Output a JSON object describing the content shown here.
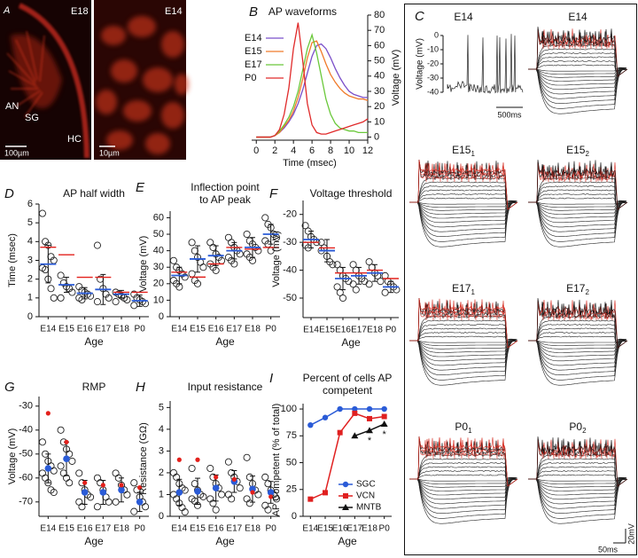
{
  "images": {
    "panel": "A",
    "left": {
      "label": "E18",
      "regions": [
        "AN",
        "SG",
        "HC"
      ],
      "scale": "100µm"
    },
    "right": {
      "label": "E14",
      "scale": "10µm"
    }
  },
  "chart_data": [
    {
      "panel": "B",
      "type": "line",
      "title": "AP waveforms",
      "x_label": "Time (msec)",
      "y_label": "Voltage (mV)",
      "y_axis_side": "right",
      "legend": "left",
      "x": [
        0,
        0.5,
        1,
        1.5,
        2,
        2.5,
        3,
        3.5,
        4,
        4.5,
        5,
        5.5,
        6,
        6.5,
        7,
        7.5,
        8,
        8.5,
        9,
        9.5,
        10,
        10.5,
        11,
        11.5,
        12
      ],
      "series": [
        {
          "name": "E14",
          "color": "#7b4fc9",
          "values": [
            0,
            0,
            0,
            0,
            1,
            3,
            6,
            10,
            15,
            22,
            31,
            42,
            53,
            60,
            61,
            58,
            52,
            45,
            39,
            34,
            30,
            28,
            27,
            26,
            26
          ]
        },
        {
          "name": "E15",
          "color": "#f07a2a",
          "values": [
            0,
            0,
            0,
            0,
            1,
            3,
            7,
            11,
            17,
            26,
            38,
            52,
            62,
            63,
            56,
            48,
            41,
            36,
            32,
            29,
            27,
            26,
            25,
            25,
            24
          ]
        },
        {
          "name": "E17",
          "color": "#6ac83a",
          "values": [
            0,
            0,
            0,
            0,
            1,
            4,
            8,
            13,
            20,
            30,
            44,
            58,
            67,
            55,
            40,
            25,
            15,
            9,
            6,
            5,
            4,
            4,
            3,
            3,
            3
          ]
        },
        {
          "name": "P0",
          "color": "#e02a2a",
          "values": [
            0,
            0,
            0,
            0,
            1,
            5,
            15,
            32,
            58,
            75,
            50,
            22,
            8,
            3,
            2,
            2,
            3,
            4,
            5,
            6,
            7,
            8,
            9,
            10,
            12
          ]
        }
      ],
      "xlim": [
        -0.5,
        12
      ],
      "xticks": [
        0,
        2,
        4,
        6,
        8,
        10,
        12
      ],
      "ylim": [
        -2,
        80
      ],
      "yticks": [
        0,
        10,
        20,
        30,
        40,
        50,
        60,
        70,
        80
      ]
    },
    {
      "panel": "D",
      "type": "dotplot",
      "title": "AP half width",
      "x_label": "Age",
      "y_label": "Time (msec)",
      "categories": [
        "E14",
        "E15",
        "E16",
        "E17",
        "E18",
        "P0"
      ],
      "points": [
        [
          5.5,
          4.0,
          3.8,
          3.2,
          3.0,
          2.6,
          2.5,
          2.0,
          1.5,
          1.0
        ],
        [
          2.2,
          1.8,
          1.6,
          1.5,
          1.3,
          1.0
        ],
        [
          1.6,
          1.4,
          1.3,
          1.2,
          1.1,
          1.0,
          0.9
        ],
        [
          3.8,
          2.0,
          1.5,
          1.2,
          1.0,
          0.8
        ],
        [
          1.3,
          1.2,
          1.1,
          1.0,
          0.9,
          0.8
        ],
        [
          1.2,
          1.0,
          0.9,
          0.8,
          0.7,
          0.6
        ]
      ],
      "mean": [
        2.8,
        1.7,
        1.25,
        1.45,
        1.2,
        0.85
      ],
      "sd": [
        1.0,
        0.4,
        0.3,
        0.8,
        0.2,
        0.3
      ],
      "reference": [
        3.7,
        3.3,
        2.1,
        2.1,
        1.3,
        1.3
      ],
      "mean_style": "line",
      "reference_style": "line",
      "point_color": "#222222",
      "mean_color": "#2a5bd7",
      "reference_color": "#e3201b",
      "ylim": [
        0,
        6
      ],
      "yticks": [
        0,
        1,
        2,
        3,
        4,
        5,
        6
      ]
    },
    {
      "panel": "E",
      "type": "dotplot",
      "title": [
        "Inflection point",
        "to AP peak"
      ],
      "x_label": "Age",
      "y_label": "Voltage (mV)",
      "categories": [
        "E14",
        "E15",
        "E16",
        "E17",
        "E18",
        "P0"
      ],
      "points": [
        [
          34,
          30,
          28,
          26,
          24,
          22,
          20,
          18
        ],
        [
          45,
          40,
          36,
          33,
          30,
          26,
          22,
          20
        ],
        [
          45,
          42,
          38,
          36,
          34,
          32,
          30,
          28
        ],
        [
          48,
          45,
          42,
          40,
          38,
          36,
          34,
          32
        ],
        [
          50,
          46,
          44,
          42,
          40,
          38,
          36,
          34
        ],
        [
          60,
          56,
          54,
          50,
          48,
          46,
          44,
          40
        ]
      ],
      "mean": [
        25,
        35,
        37,
        40,
        42,
        50
      ],
      "sd": [
        5,
        8,
        6,
        5,
        6,
        6
      ],
      "reference": [
        27,
        24,
        32,
        42,
        41,
        42
      ],
      "mean_style": "line",
      "reference_style": "line",
      "point_color": "#222222",
      "mean_color": "#2a5bd7",
      "reference_color": "#e3201b",
      "ylim": [
        0,
        64
      ],
      "yticks": [
        0,
        10,
        20,
        30,
        40,
        50,
        60
      ]
    },
    {
      "panel": "F",
      "type": "dotplot",
      "title": "Voltage threshold",
      "x_label": "Age",
      "y_label": "Voltage (mV)",
      "categories": [
        "E14",
        "E15",
        "E16",
        "E17",
        "E18",
        "P0"
      ],
      "points": [
        [
          -24,
          -26,
          -28,
          -29,
          -30,
          -31,
          -32
        ],
        [
          -30,
          -32,
          -35,
          -37,
          -38,
          -33
        ],
        [
          -38,
          -40,
          -42,
          -43,
          -44,
          -46,
          -48,
          -50
        ],
        [
          -38,
          -40,
          -42,
          -43,
          -44,
          -45,
          -47
        ],
        [
          -37,
          -39,
          -41,
          -42,
          -44,
          -45
        ],
        [
          -42,
          -44,
          -45,
          -46,
          -47,
          -48
        ]
      ],
      "mean": [
        -29,
        -33,
        -43,
        -42,
        -41,
        -46
      ],
      "sd": [
        3,
        4,
        4,
        3,
        3,
        2
      ],
      "reference": [
        -30,
        -32,
        -41,
        -41,
        -40,
        -43
      ],
      "mean_style": "line",
      "reference_style": "line",
      "point_color": "#222222",
      "mean_color": "#2a5bd7",
      "reference_color": "#e3201b",
      "ylim": [
        -57,
        -15
      ],
      "yticks": [
        -20,
        -30,
        -40,
        -50
      ]
    },
    {
      "panel": "G",
      "type": "dotplot",
      "title": "RMP",
      "x_label": "Age",
      "y_label": "Voltage (mV)",
      "categories": [
        "E14",
        "E15",
        "E16",
        "E17",
        "E18",
        "P0"
      ],
      "points": [
        [
          -45,
          -50,
          -53,
          -55,
          -57,
          -58,
          -60,
          -62,
          -65,
          -66
        ],
        [
          -40,
          -45,
          -48,
          -50,
          -53,
          -55,
          -58,
          -60,
          -62
        ],
        [
          -58,
          -62,
          -65,
          -67,
          -68,
          -70,
          -72
        ],
        [
          -60,
          -62,
          -65,
          -68,
          -70,
          -72
        ],
        [
          -58,
          -60,
          -63,
          -65,
          -67,
          -70
        ],
        [
          -62,
          -65,
          -68,
          -70,
          -72,
          -74
        ]
      ],
      "mean": [
        -56,
        -52,
        -66,
        -66,
        -65,
        -70
      ],
      "sd": [
        6,
        7,
        5,
        5,
        5,
        4
      ],
      "reference": [
        -33,
        -45,
        -62,
        -63,
        -63,
        -64
      ],
      "mean_style": "dot",
      "reference_style": "dot",
      "point_color": "#222222",
      "mean_color": "#2a5bd7",
      "reference_color": "#e3201b",
      "ylim": [
        -76,
        -26
      ],
      "yticks": [
        -30,
        -40,
        -50,
        -60,
        -70
      ]
    },
    {
      "panel": "H",
      "type": "dotplot",
      "title": "Input resistance",
      "x_label": "Age",
      "y_label": "Resistance (GΩ)",
      "categories": [
        "E14",
        "E15",
        "E16",
        "E17",
        "E18",
        "P0"
      ],
      "points": [
        [
          2.0,
          1.8,
          1.5,
          1.3,
          1.2,
          1.0,
          0.8,
          0.6,
          0.4,
          0.2
        ],
        [
          2.2,
          1.5,
          1.2,
          1.0,
          0.9,
          0.8,
          0.7,
          0.5
        ],
        [
          2.2,
          1.8,
          1.5,
          1.3,
          1.0,
          0.8,
          0.6,
          0.3
        ],
        [
          2.5,
          2.0,
          1.8,
          1.6,
          1.3,
          1.0,
          0.8
        ],
        [
          2.7,
          1.8,
          1.5,
          1.2,
          1.0,
          0.8,
          0.6
        ],
        [
          1.8,
          1.5,
          1.2,
          1.0,
          0.8,
          0.5,
          0.3
        ]
      ],
      "mean": [
        1.1,
        1.15,
        1.3,
        1.6,
        1.25,
        1.1
      ],
      "sd": [
        0.6,
        0.6,
        0.6,
        0.5,
        0.6,
        0.5
      ],
      "reference": [
        2.6,
        2.6,
        1.8,
        1.7,
        1.1,
        0.9
      ],
      "mean_style": "dot",
      "reference_style": "dot",
      "point_color": "#222222",
      "mean_color": "#2a5bd7",
      "reference_color": "#e3201b",
      "ylim": [
        0,
        5.3
      ],
      "yticks": [
        0,
        1,
        2,
        3,
        4,
        5
      ]
    },
    {
      "panel": "I",
      "type": "line",
      "title": [
        "Percent of cells AP",
        "competent"
      ],
      "x_label": "Age",
      "y_label": "AP Competent (% of total)",
      "legend": "lower right",
      "categories": [
        "E14",
        "E15",
        "E16",
        "E17",
        "E18",
        "P0"
      ],
      "series": [
        {
          "name": "SGC",
          "color": "#2a5bd7",
          "marker": "circle",
          "values": [
            85,
            92,
            100,
            100,
            100,
            100
          ]
        },
        {
          "name": "VCN",
          "color": "#e02020",
          "marker": "square",
          "values": [
            16,
            22,
            78,
            96,
            91,
            93
          ]
        },
        {
          "name": "MNTB",
          "color": "#111111",
          "marker": "triangle",
          "values": [
            null,
            null,
            null,
            75,
            80,
            86
          ]
        }
      ],
      "annotations": [
        "*",
        "*"
      ],
      "ylim": [
        0,
        105
      ],
      "yticks": [
        0,
        25,
        50,
        75,
        100
      ]
    }
  ],
  "traces": {
    "panel": "C",
    "example": {
      "y_label": "Voltage (mV)",
      "ylim": [
        -45,
        5
      ],
      "yticks": [
        0,
        -10,
        -20,
        -30,
        -40
      ],
      "time_scale": "500ms"
    },
    "cells": [
      {
        "label": "E14"
      },
      {
        "label": "E14"
      },
      {
        "label": "E15",
        "sub": "1"
      },
      {
        "label": "E15",
        "sub": "2"
      },
      {
        "label": "E17",
        "sub": "1"
      },
      {
        "label": "E17",
        "sub": "2"
      },
      {
        "label": "P0",
        "sub": "1"
      },
      {
        "label": "P0",
        "sub": "2"
      }
    ],
    "scale_bar": {
      "time": "50ms",
      "voltage": "20mV"
    }
  }
}
